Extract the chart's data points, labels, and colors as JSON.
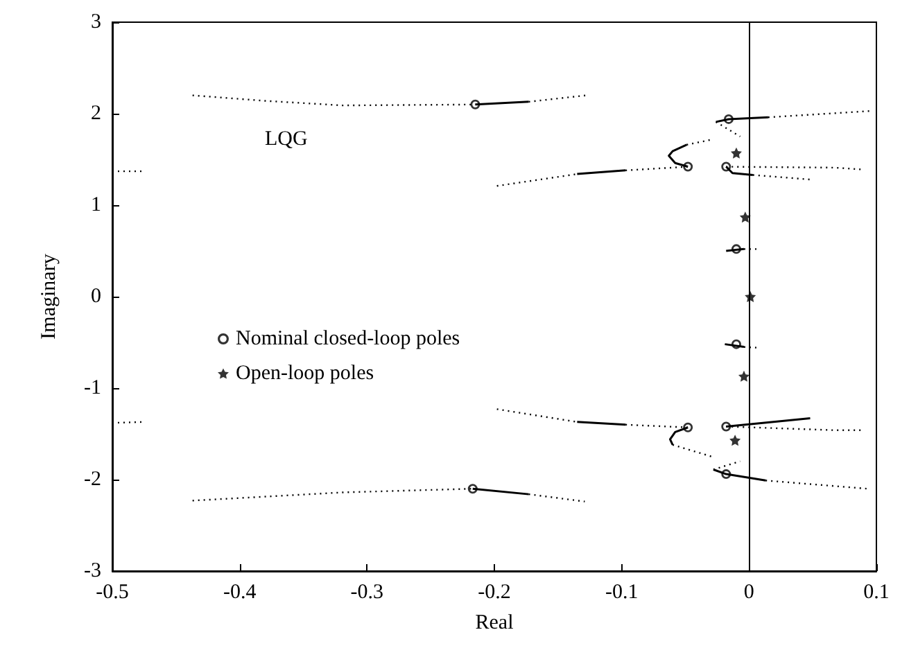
{
  "chart_data": {
    "type": "scatter",
    "xlabel": "Real",
    "ylabel": "Imaginary",
    "annotations": [
      "LQG"
    ],
    "xlim": [
      -0.5,
      0.1
    ],
    "xticks": [
      -0.5,
      -0.4,
      -0.3,
      -0.2,
      -0.1,
      0,
      0.1
    ],
    "ylim": [
      -3,
      3
    ],
    "yticks": [
      -3,
      -2,
      -1,
      0,
      1,
      2,
      3
    ],
    "grid": false,
    "legend": "left",
    "ref_lines": [
      {
        "axis": "x",
        "value": 0,
        "color": "#000000",
        "line_style": "solid"
      }
    ],
    "series": [
      {
        "type": "line",
        "color": "#000000",
        "marker": "none",
        "line_style": "dotted",
        "x": [
          -0.437,
          -0.38,
          -0.319,
          -0.215
        ],
        "values": [
          2.2,
          2.14,
          2.09,
          2.1
        ]
      },
      {
        "type": "line",
        "color": "#000000",
        "marker": "none",
        "line_style": "solid",
        "x": [
          -0.215,
          -0.173
        ],
        "values": [
          2.1,
          2.13
        ]
      },
      {
        "type": "line",
        "color": "#000000",
        "marker": "none",
        "line_style": "dotted",
        "x": [
          -0.173,
          -0.128
        ],
        "values": [
          2.13,
          2.2
        ]
      },
      {
        "type": "line",
        "color": "#000000",
        "marker": "none",
        "line_style": "dotted",
        "x": [
          -0.5,
          -0.476
        ],
        "values": [
          1.37,
          1.37
        ]
      },
      {
        "type": "line",
        "color": "#000000",
        "marker": "none",
        "line_style": "dotted",
        "x": [
          -0.198,
          -0.135
        ],
        "values": [
          1.21,
          1.34
        ]
      },
      {
        "type": "line",
        "color": "#000000",
        "marker": "none",
        "line_style": "solid",
        "x": [
          -0.135,
          -0.097
        ],
        "values": [
          1.34,
          1.38
        ]
      },
      {
        "type": "line",
        "color": "#000000",
        "marker": "none",
        "line_style": "dotted",
        "x": [
          -0.097,
          -0.048
        ],
        "values": [
          1.38,
          1.42
        ]
      },
      {
        "type": "line",
        "color": "#000000",
        "marker": "none",
        "line_style": "solid",
        "x": [
          -0.048,
          -0.058,
          -0.063,
          -0.06,
          -0.049
        ],
        "values": [
          1.42,
          1.46,
          1.54,
          1.59,
          1.66
        ]
      },
      {
        "type": "line",
        "color": "#000000",
        "marker": "none",
        "line_style": "dotted",
        "x": [
          -0.049,
          -0.028
        ],
        "values": [
          1.66,
          1.72
        ]
      },
      {
        "type": "line",
        "color": "#000000",
        "marker": "none",
        "line_style": "solid",
        "x": [
          -0.026,
          -0.016,
          0.015
        ],
        "values": [
          1.91,
          1.94,
          1.96
        ]
      },
      {
        "type": "line",
        "color": "#000000",
        "marker": "none",
        "line_style": "dotted",
        "x": [
          0.015,
          0.096
        ],
        "values": [
          1.96,
          2.03
        ]
      },
      {
        "type": "line",
        "color": "#000000",
        "marker": "none",
        "line_style": "dotted",
        "x": [
          -0.026,
          -0.007
        ],
        "values": [
          1.91,
          1.75
        ]
      },
      {
        "type": "line",
        "color": "#000000",
        "marker": "none",
        "line_style": "dotted",
        "x": [
          -0.018,
          0.067,
          0.089
        ],
        "values": [
          1.42,
          1.41,
          1.39
        ]
      },
      {
        "type": "line",
        "color": "#000000",
        "marker": "none",
        "line_style": "solid",
        "x": [
          -0.018,
          -0.013,
          0.003
        ],
        "values": [
          1.42,
          1.35,
          1.33
        ]
      },
      {
        "type": "line",
        "color": "#000000",
        "marker": "none",
        "line_style": "dotted",
        "x": [
          0.003,
          0.048
        ],
        "values": [
          1.33,
          1.28
        ]
      },
      {
        "type": "line",
        "color": "#000000",
        "marker": "none",
        "line_style": "solid",
        "x": [
          -0.018,
          -0.004
        ],
        "values": [
          0.5,
          0.52
        ]
      },
      {
        "type": "line",
        "color": "#000000",
        "marker": "none",
        "line_style": "dotted",
        "x": [
          -0.004,
          0.008
        ],
        "values": [
          0.52,
          0.52
        ]
      },
      {
        "type": "line",
        "color": "#000000",
        "marker": "none",
        "line_style": "solid",
        "x": [
          -0.019,
          -0.004
        ],
        "values": [
          -0.52,
          -0.55
        ]
      },
      {
        "type": "line",
        "color": "#000000",
        "marker": "none",
        "line_style": "dotted",
        "x": [
          -0.004,
          0.008
        ],
        "values": [
          -0.55,
          -0.56
        ]
      },
      {
        "type": "line",
        "color": "#000000",
        "marker": "none",
        "line_style": "dotted",
        "x": [
          -0.5,
          -0.476
        ],
        "values": [
          -1.38,
          -1.37
        ]
      },
      {
        "type": "line",
        "color": "#000000",
        "marker": "none",
        "line_style": "dotted",
        "x": [
          -0.198,
          -0.135
        ],
        "values": [
          -1.23,
          -1.37
        ]
      },
      {
        "type": "line",
        "color": "#000000",
        "marker": "none",
        "line_style": "solid",
        "x": [
          -0.135,
          -0.097
        ],
        "values": [
          -1.37,
          -1.4
        ]
      },
      {
        "type": "line",
        "color": "#000000",
        "marker": "none",
        "line_style": "dotted",
        "x": [
          -0.097,
          -0.048
        ],
        "values": [
          -1.4,
          -1.43
        ]
      },
      {
        "type": "line",
        "color": "#000000",
        "marker": "none",
        "line_style": "solid",
        "x": [
          -0.048,
          -0.058,
          -0.062,
          -0.06
        ],
        "values": [
          -1.43,
          -1.48,
          -1.56,
          -1.62
        ]
      },
      {
        "type": "line",
        "color": "#000000",
        "marker": "none",
        "line_style": "dotted",
        "x": [
          -0.06,
          -0.029
        ],
        "values": [
          -1.62,
          -1.75
        ]
      },
      {
        "type": "line",
        "color": "#000000",
        "marker": "none",
        "line_style": "solid",
        "x": [
          -0.028,
          -0.018,
          0.013
        ],
        "values": [
          -1.89,
          -1.94,
          -2.01
        ]
      },
      {
        "type": "line",
        "color": "#000000",
        "marker": "none",
        "line_style": "dotted",
        "x": [
          0.013,
          0.093
        ],
        "values": [
          -2.01,
          -2.1
        ]
      },
      {
        "type": "line",
        "color": "#000000",
        "marker": "none",
        "line_style": "dotted",
        "x": [
          -0.028,
          -0.007
        ],
        "values": [
          -1.89,
          -1.8
        ]
      },
      {
        "type": "line",
        "color": "#000000",
        "marker": "none",
        "line_style": "solid",
        "x": [
          -0.018,
          0.048
        ],
        "values": [
          -1.42,
          -1.33
        ]
      },
      {
        "type": "line",
        "color": "#000000",
        "marker": "none",
        "line_style": "dotted",
        "x": [
          -0.018,
          0.067,
          0.089
        ],
        "values": [
          -1.42,
          -1.46,
          -1.46
        ]
      },
      {
        "type": "line",
        "color": "#000000",
        "marker": "none",
        "line_style": "dotted",
        "x": [
          -0.437,
          -0.319,
          -0.217
        ],
        "values": [
          -2.23,
          -2.14,
          -2.1
        ]
      },
      {
        "type": "line",
        "color": "#000000",
        "marker": "none",
        "line_style": "solid",
        "x": [
          -0.217,
          -0.173
        ],
        "values": [
          -2.1,
          -2.16
        ]
      },
      {
        "type": "line",
        "color": "#000000",
        "marker": "none",
        "line_style": "dotted",
        "x": [
          -0.173,
          -0.129
        ],
        "values": [
          -2.16,
          -2.24
        ]
      },
      {
        "name": "Nominal closed-loop poles",
        "color": "#000000",
        "marker": "circle",
        "x": [
          -0.215,
          -0.016,
          -0.048,
          -0.018,
          -0.01,
          -0.01,
          -0.048,
          -0.018,
          -0.018,
          -0.217
        ],
        "values": [
          2.1,
          1.94,
          1.42,
          1.42,
          0.52,
          -0.52,
          -1.43,
          -1.42,
          -1.94,
          -2.1
        ]
      },
      {
        "name": "Open-loop poles",
        "color": "#000000",
        "marker": "star",
        "x": [
          -0.01,
          -0.003,
          0.001,
          -0.004,
          -0.011
        ],
        "values": [
          1.57,
          0.87,
          0,
          -0.87,
          -1.57
        ]
      }
    ]
  }
}
